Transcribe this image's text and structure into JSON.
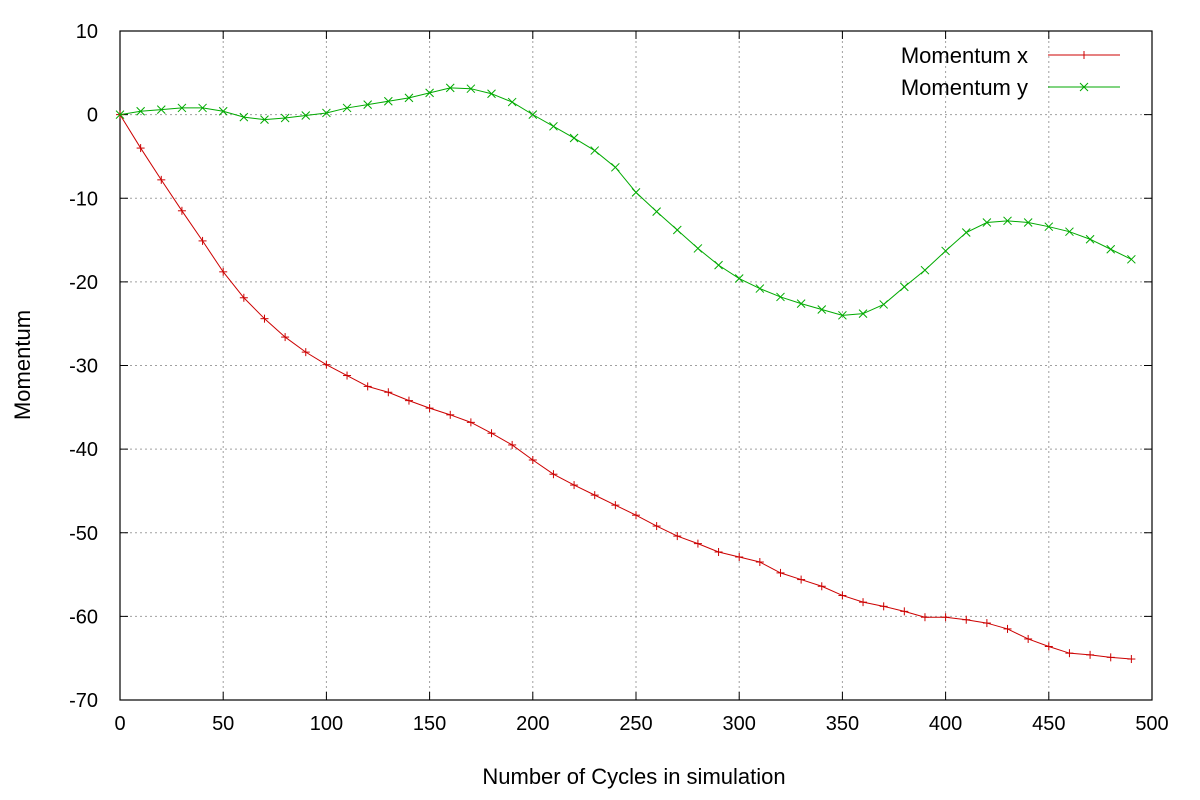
{
  "chart_data": {
    "type": "line",
    "title": "",
    "xlabel": "Number of Cycles in simulation",
    "ylabel": "Momentum",
    "xlim": [
      0,
      500
    ],
    "ylim": [
      -70,
      10
    ],
    "xticks": [
      0,
      50,
      100,
      150,
      200,
      250,
      300,
      350,
      400,
      450,
      500
    ],
    "yticks": [
      10,
      0,
      -10,
      -20,
      -30,
      -40,
      -50,
      -60,
      -70
    ],
    "grid": true,
    "legend_position": "top-right",
    "x": [
      0,
      10,
      20,
      30,
      40,
      50,
      60,
      70,
      80,
      90,
      100,
      110,
      120,
      130,
      140,
      150,
      160,
      170,
      180,
      190,
      200,
      210,
      220,
      230,
      240,
      250,
      260,
      270,
      280,
      290,
      300,
      310,
      320,
      330,
      340,
      350,
      360,
      370,
      380,
      390,
      400,
      410,
      420,
      430,
      440,
      450,
      460,
      470,
      480,
      490
    ],
    "series": [
      {
        "name": "Momentum x",
        "color": "#cc0000",
        "marker": "plus",
        "values": [
          0,
          -4.0,
          -7.8,
          -11.5,
          -15.1,
          -18.8,
          -21.9,
          -24.4,
          -26.6,
          -28.4,
          -29.9,
          -31.2,
          -32.5,
          -33.2,
          -34.2,
          -35.1,
          -35.9,
          -36.8,
          -38.1,
          -39.5,
          -41.3,
          -43.0,
          -44.3,
          -45.5,
          -46.7,
          -47.9,
          -49.2,
          -50.4,
          -51.3,
          -52.3,
          -52.9,
          -53.5,
          -54.8,
          -55.6,
          -56.4,
          -57.5,
          -58.3,
          -58.8,
          -59.4,
          -60.1,
          -60.1,
          -60.4,
          -60.8,
          -61.5,
          -62.7,
          -63.6,
          -64.4,
          -64.6,
          -64.9,
          -65.1
        ]
      },
      {
        "name": "Momentum y",
        "color": "#00aa00",
        "marker": "cross",
        "values": [
          0,
          0.4,
          0.6,
          0.8,
          0.8,
          0.4,
          -0.3,
          -0.6,
          -0.4,
          -0.1,
          0.2,
          0.8,
          1.2,
          1.6,
          2.0,
          2.6,
          3.2,
          3.1,
          2.5,
          1.5,
          0.0,
          -1.4,
          -2.8,
          -4.3,
          -6.3,
          -9.3,
          -11.6,
          -13.8,
          -16.0,
          -18.0,
          -19.6,
          -20.8,
          -21.8,
          -22.6,
          -23.3,
          -24.0,
          -23.8,
          -22.7,
          -20.6,
          -18.6,
          -16.3,
          -14.1,
          -12.9,
          -12.7,
          -12.9,
          -13.4,
          -14.0,
          -14.9,
          -16.1,
          -17.3
        ]
      }
    ]
  }
}
